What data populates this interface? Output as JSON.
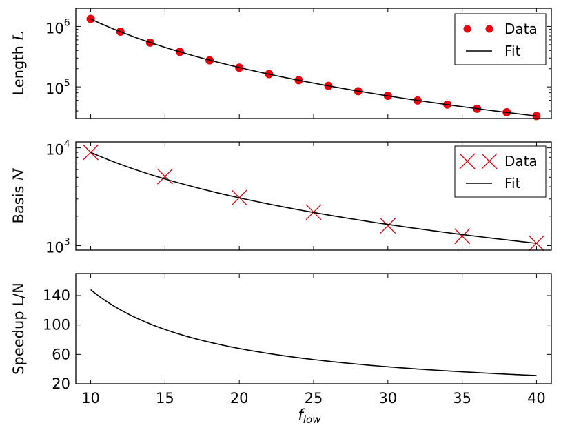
{
  "chart_data": [
    {
      "type": "scatter",
      "ylabel": "Length",
      "ylabel_symbol": "L",
      "yscale": "log",
      "xlim": [
        9,
        41
      ],
      "ylim": [
        30000,
        2000000
      ],
      "yticks": [
        100000,
        1000000
      ],
      "ytick_labels": [
        {
          "base": "10",
          "exp": "5"
        },
        {
          "base": "10",
          "exp": "6"
        }
      ],
      "legend": {
        "position": "top-right",
        "entries": [
          "Data",
          "Fit"
        ]
      },
      "grid": false,
      "series": [
        {
          "name": "Data",
          "style": "dots",
          "color": "#e8000b",
          "x": [
            10,
            12,
            14,
            16,
            18,
            20,
            22,
            24,
            26,
            28,
            30,
            32,
            34,
            36,
            38,
            40
          ],
          "y": [
            1330000,
            820000,
            540000,
            380000,
            275000,
            208000,
            163000,
            129000,
            104000,
            85000,
            71000,
            59500,
            51000,
            43500,
            38000,
            33000
          ]
        },
        {
          "name": "Fit",
          "style": "line",
          "color": "#000000",
          "model": {
            "form": "power",
            "coef": 1330000,
            "exp": -2.667
          }
        }
      ]
    },
    {
      "type": "scatter",
      "ylabel": "Basis",
      "ylabel_symbol": "N",
      "yscale": "log",
      "xlim": [
        9,
        41
      ],
      "ylim": [
        900,
        11500
      ],
      "yticks": [
        1000,
        10000
      ],
      "ytick_labels": [
        {
          "base": "10",
          "exp": "3"
        },
        {
          "base": "10",
          "exp": "4"
        }
      ],
      "legend": {
        "position": "top-right",
        "entries": [
          "Data",
          "Fit"
        ]
      },
      "grid": false,
      "series": [
        {
          "name": "Data",
          "style": "crosses",
          "color": "#e8000b",
          "x": [
            10,
            15,
            20,
            25,
            30,
            35,
            40
          ],
          "y": [
            9000,
            5100,
            3100,
            2200,
            1600,
            1250,
            1060
          ]
        },
        {
          "name": "Fit",
          "style": "line",
          "color": "#000000",
          "model": {
            "form": "power",
            "coef": 9000,
            "exp": -1.545
          }
        }
      ]
    },
    {
      "type": "line",
      "ylabel": "Speedup L/N",
      "xlabel": "f",
      "xlabel_sub": "low",
      "yscale": "linear",
      "xlim": [
        9,
        41
      ],
      "ylim": [
        20,
        170
      ],
      "yticks": [
        20,
        60,
        100,
        140
      ],
      "xticks": [
        10,
        15,
        20,
        25,
        30,
        35,
        40
      ],
      "grid": false,
      "series": [
        {
          "style": "line",
          "color": "#000000",
          "model": {
            "form": "power",
            "coef": 148,
            "exp": -1.122
          }
        }
      ]
    }
  ]
}
